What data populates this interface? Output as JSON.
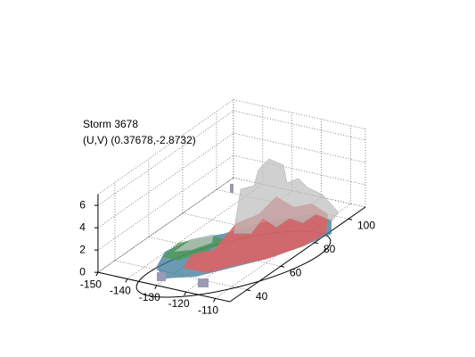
{
  "chart_data": {
    "type": "isosurface3d",
    "title": [
      "Storm 3678",
      "(U,V) (0.37678,-2.8732)"
    ],
    "xlim": [
      -150,
      -105
    ],
    "xticks": [
      -150,
      -140,
      -130,
      -120,
      -110
    ],
    "ylim": [
      30,
      110
    ],
    "yticks": [
      40,
      60,
      80,
      100
    ],
    "zlim": [
      0,
      7
    ],
    "zticks": [
      0,
      2,
      4,
      6
    ],
    "grid": true
  }
}
